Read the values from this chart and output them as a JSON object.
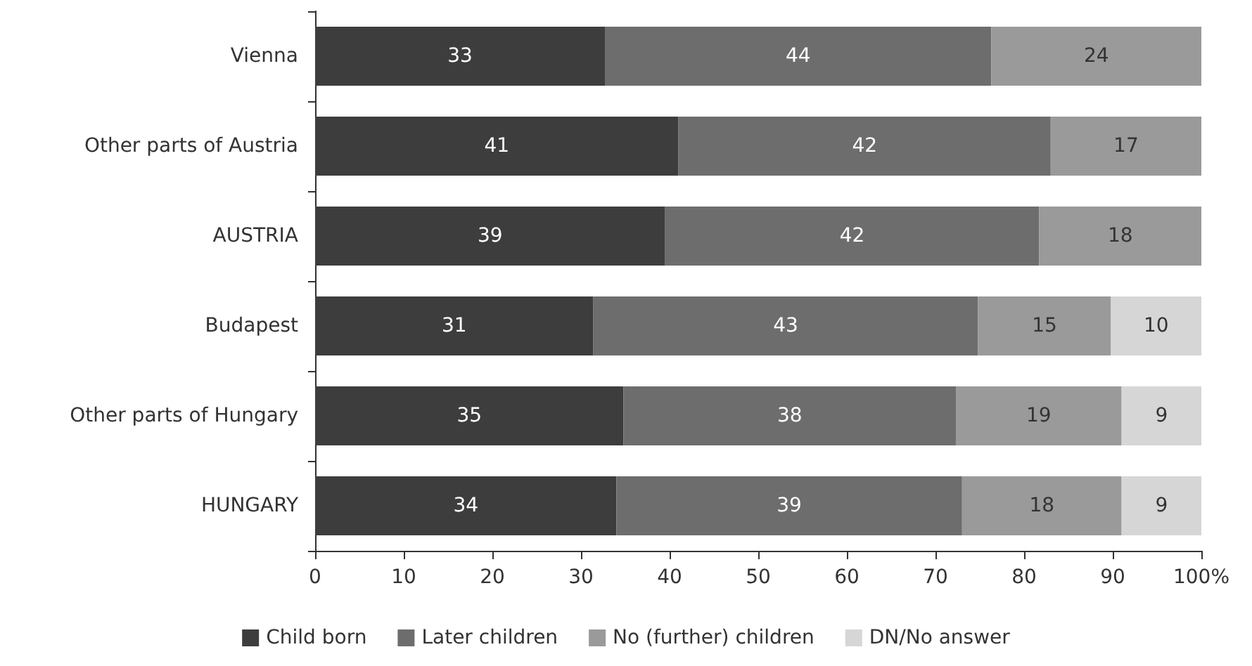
{
  "chart_data": {
    "type": "bar",
    "orientation": "horizontal",
    "stacked": true,
    "categories": [
      "Vienna",
      "Other parts of Austria",
      "AUSTRIA",
      "Budapest",
      "Other parts of Hungary",
      "HUNGARY"
    ],
    "series": [
      {
        "name": "Child born",
        "color": "#3d3d3d",
        "values": [
          32.7,
          41,
          39.5,
          31.4,
          34.8,
          34
        ],
        "value_labels": [
          "33",
          "41",
          "39",
          "31",
          "35",
          "34"
        ]
      },
      {
        "name": "Later children",
        "color": "#6d6d6d",
        "values": [
          43.6,
          42,
          42.2,
          43.4,
          37.5,
          39
        ],
        "value_labels": [
          "44",
          "42",
          "42",
          "43",
          "38",
          "39"
        ]
      },
      {
        "name": "No (further) children",
        "color": "#9a9a9a",
        "values": [
          23.7,
          17,
          18.3,
          15,
          18.7,
          18
        ],
        "value_labels": [
          "24",
          "17",
          "18",
          "15",
          "19",
          "18"
        ]
      },
      {
        "name": "DN/No answer",
        "color": "#d6d6d6",
        "values": [
          null,
          null,
          null,
          10.2,
          9,
          9
        ],
        "value_labels": [
          null,
          null,
          null,
          "10",
          "9",
          "9"
        ]
      }
    ],
    "xlim": [
      0,
      100
    ],
    "xticks": [
      0,
      10,
      20,
      30,
      40,
      50,
      60,
      70,
      80,
      90,
      {
        "value": 100,
        "label": "100%"
      }
    ],
    "grid": false,
    "legend": "bottom"
  }
}
